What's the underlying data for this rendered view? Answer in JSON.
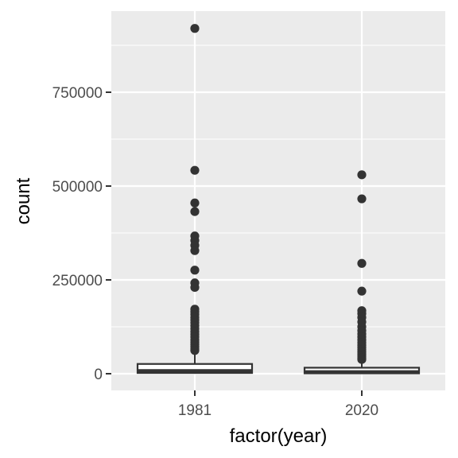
{
  "chart_data": {
    "type": "boxplot",
    "xlabel": "factor(year)",
    "ylabel": "count",
    "categories": [
      "1981",
      "2020"
    ],
    "ylim": [
      -40000,
      970000
    ],
    "yticks": [
      0,
      250000,
      500000,
      750000
    ],
    "ytick_labels": [
      "0",
      "250000",
      "500000",
      "750000"
    ],
    "grid": true,
    "legend": "none",
    "colors": {
      "panel": "#ebebeb",
      "grid": "#ffffff",
      "box_fill": "#ffffff",
      "box_stroke": "#333333",
      "point": "#333333"
    },
    "boxes": [
      {
        "category": "1981",
        "whisker_low": 0,
        "q1": 2000,
        "median": 8000,
        "q3": 26000,
        "whisker_high": 60000,
        "outliers": [
          920000,
          542000,
          455000,
          432000,
          367000,
          355000,
          342000,
          328000,
          276000,
          242000,
          230000,
          172000,
          165000,
          158000,
          150000,
          143000,
          136000,
          128000,
          120000,
          112000,
          105000,
          98000,
          90000,
          84000,
          78000,
          72000,
          66000,
          62000
        ]
      },
      {
        "category": "2020",
        "whisker_low": 0,
        "q1": 1000,
        "median": 5000,
        "q3": 16000,
        "whisker_high": 36000,
        "outliers": [
          530000,
          466000,
          294000,
          220000,
          168000,
          160000,
          150000,
          138000,
          125000,
          115000,
          106000,
          98000,
          90000,
          83000,
          76000,
          70000,
          64000,
          58000,
          52000,
          47000,
          42000,
          38000
        ]
      }
    ]
  }
}
